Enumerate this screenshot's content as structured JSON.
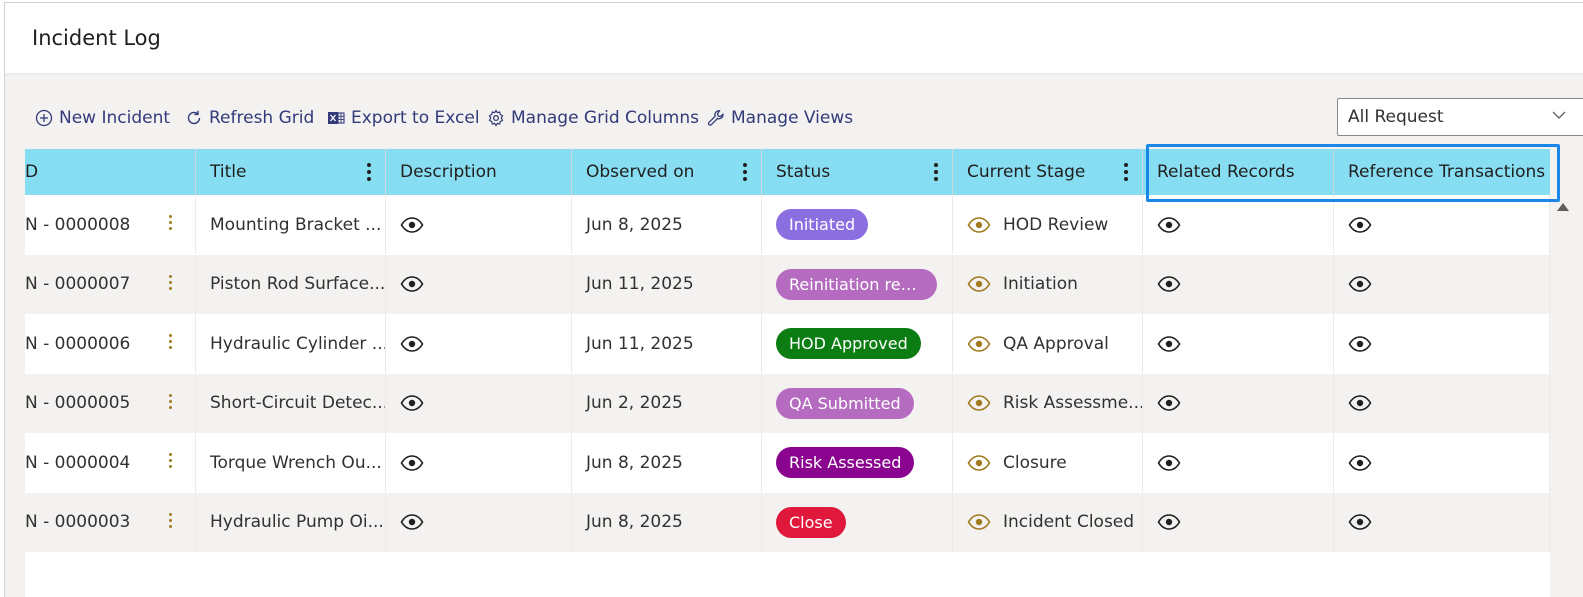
{
  "page": {
    "title": "Incident Log"
  },
  "toolbar": {
    "new_incident": "New Incident",
    "refresh_grid": "Refresh Grid",
    "export_excel": "Export to Excel",
    "manage_columns": "Manage Grid Columns",
    "manage_views": "Manage Views"
  },
  "view_select": {
    "value": "All Request"
  },
  "columns": {
    "id": "D",
    "title": "Title",
    "description": "Description",
    "observed_on": "Observed on",
    "status": "Status",
    "current_stage": "Current Stage",
    "related_records": "Related Records",
    "reference_transactions": "Reference Transactions"
  },
  "rows": [
    {
      "id": "N - 0000008",
      "title": "Mounting Bracket ...",
      "observed_on": "Jun 8, 2025",
      "status": "Initiated",
      "status_color": "#8b6fe0",
      "stage": "HOD Review"
    },
    {
      "id": "N - 0000007",
      "title": "Piston Rod Surface...",
      "observed_on": "Jun 11, 2025",
      "status": "Reinitiation requ...",
      "status_color": "#b56bbf",
      "stage": "Initiation"
    },
    {
      "id": "N - 0000006",
      "title": "Hydraulic Cylinder ...",
      "observed_on": "Jun 11, 2025",
      "status": "HOD Approved",
      "status_color": "#0b7d12",
      "stage": "QA Approval"
    },
    {
      "id": "N - 0000005",
      "title": "Short-Circuit Detec...",
      "observed_on": "Jun 2, 2025",
      "status": "QA Submitted",
      "status_color": "#b56bbf",
      "stage": "Risk Assessme..."
    },
    {
      "id": "N - 0000004",
      "title": "Torque Wrench Ou...",
      "observed_on": "Jun 8, 2025",
      "status": "Risk Assessed",
      "status_color": "#8a048f",
      "stage": "Closure"
    },
    {
      "id": "N - 0000003",
      "title": "Hydraulic Pump Oi...",
      "observed_on": "Jun 8, 2025",
      "status": "Close",
      "status_color": "#e0193c",
      "stage": "Incident Closed"
    }
  ],
  "icons": {
    "view": "eye-icon",
    "stage": "eye-icon",
    "add": "plus-circle-icon",
    "refresh": "refresh-icon",
    "excel": "excel-icon",
    "settings": "gear-icon",
    "wrench": "wrench-icon"
  },
  "colors": {
    "header_bg": "#87ddf2",
    "toolbar_text": "#323a7a",
    "highlight": "#1a86e8",
    "stage_icon": "#a07a1f"
  }
}
